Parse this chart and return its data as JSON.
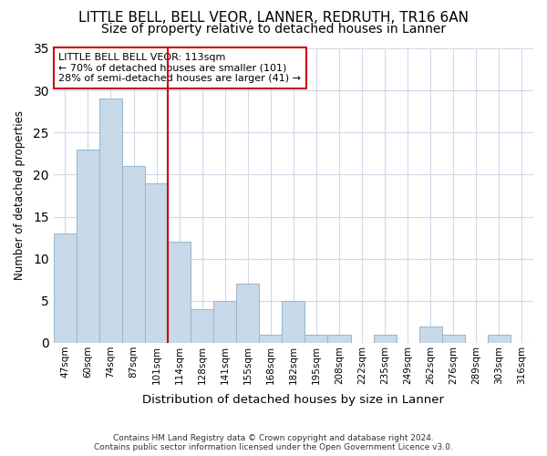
{
  "title": "LITTLE BELL, BELL VEOR, LANNER, REDRUTH, TR16 6AN",
  "subtitle": "Size of property relative to detached houses in Lanner",
  "xlabel": "Distribution of detached houses by size in Lanner",
  "ylabel": "Number of detached properties",
  "bins": [
    "47sqm",
    "60sqm",
    "74sqm",
    "87sqm",
    "101sqm",
    "114sqm",
    "128sqm",
    "141sqm",
    "155sqm",
    "168sqm",
    "182sqm",
    "195sqm",
    "208sqm",
    "222sqm",
    "235sqm",
    "249sqm",
    "262sqm",
    "276sqm",
    "289sqm",
    "303sqm",
    "316sqm"
  ],
  "values": [
    13,
    23,
    29,
    21,
    19,
    12,
    4,
    5,
    7,
    1,
    5,
    1,
    1,
    0,
    1,
    0,
    2,
    1,
    0,
    1,
    0
  ],
  "bar_color": "#c8daea",
  "bar_edge_color": "#a0b8cc",
  "highlight_line_index": 5,
  "highlight_color": "#cc0000",
  "ylim": [
    0,
    35
  ],
  "yticks": [
    0,
    5,
    10,
    15,
    20,
    25,
    30,
    35
  ],
  "annotation_line1": "LITTLE BELL BELL VEOR: 113sqm",
  "annotation_line2": "← 70% of detached houses are smaller (101)",
  "annotation_line3": "28% of semi-detached houses are larger (41) →",
  "annotation_box_color": "#ffffff",
  "annotation_border_color": "#cc0000",
  "footer1": "Contains HM Land Registry data © Crown copyright and database right 2024.",
  "footer2": "Contains public sector information licensed under the Open Government Licence v3.0.",
  "background_color": "#ffffff",
  "plot_bg_color": "#ffffff",
  "grid_color": "#d0d8e8",
  "title_fontsize": 11,
  "subtitle_fontsize": 10
}
